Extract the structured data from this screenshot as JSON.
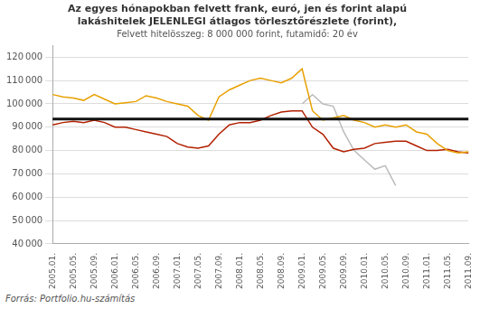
{
  "chart_data": {
    "type": "line",
    "title": [
      "Az egyes hónapokban felvett frank, euró, jen és forint alapú",
      "lakáshitelek JELENLEGI átlagos törlesztőrészlete (forint),"
    ],
    "subtitle": "Felvett hitelösszeg: 8 000 000 forint, futamidő: 20 év",
    "source": "Forrás: Portfolio.hu-számítás",
    "categories": [
      "2005.01.",
      null,
      "2005.05.",
      null,
      "2005.09.",
      null,
      "2006.01.",
      null,
      "2006.05.",
      null,
      "2006.09.",
      null,
      "2007.01.",
      null,
      "2007.05.",
      null,
      "2007.09.",
      null,
      "2008.01.",
      null,
      "2008.05.",
      null,
      "2008.09.",
      null,
      "2009.01.",
      null,
      "2009.05.",
      null,
      "2009.09.",
      null,
      "2010.01.",
      null,
      "2010.05.",
      null,
      "2010.09.",
      null,
      "2011.01.",
      null,
      "2011.05.",
      null,
      "2011.09."
    ],
    "series": [
      {
        "color": "#E8A000",
        "values": [
          104000,
          103000,
          102500,
          101500,
          104000,
          102000,
          100000,
          100500,
          101000,
          103500,
          102500,
          101000,
          100000,
          99000,
          95000,
          93000,
          103000,
          106000,
          108000,
          110000,
          111000,
          110000,
          109000,
          111000,
          115000,
          97000,
          93000,
          94000,
          95000,
          93000,
          92000,
          90000,
          91000,
          90000,
          91000,
          88000,
          87000,
          83000,
          80000,
          79000,
          79500
        ]
      },
      {
        "color": "#B22000",
        "values": [
          91000,
          92000,
          92500,
          92000,
          93000,
          92000,
          90000,
          90000,
          89000,
          88000,
          87000,
          86000,
          83000,
          81500,
          81000,
          82000,
          87000,
          91000,
          92000,
          92000,
          93000,
          95000,
          96500,
          97000,
          97000,
          90000,
          87000,
          81000,
          79500,
          80500,
          81000,
          83000,
          83500,
          84000,
          84000,
          82000,
          80000,
          80000,
          80500,
          79500,
          79000
        ]
      },
      {
        "color": "#BBBBBB",
        "values": [
          null,
          null,
          null,
          null,
          null,
          null,
          null,
          null,
          null,
          null,
          null,
          null,
          null,
          null,
          null,
          null,
          null,
          null,
          null,
          null,
          null,
          null,
          null,
          null,
          100000,
          104000,
          100000,
          99000,
          88000,
          80000,
          76000,
          72000,
          73500,
          65000,
          null,
          null,
          null,
          null,
          null,
          null,
          null
        ]
      }
    ],
    "reference_lines": [
      {
        "y": 93500,
        "color": "#111111"
      }
    ],
    "ylim": [
      40000,
      125000
    ],
    "yticks": [
      {
        "value": 40000,
        "label": "40 000"
      },
      {
        "value": 50000,
        "label": "50 000"
      },
      {
        "value": 60000,
        "label": "60 000"
      },
      {
        "value": 70000,
        "label": "70 000"
      },
      {
        "value": 80000,
        "label": "80 000"
      },
      {
        "value": 90000,
        "label": "90 000"
      },
      {
        "value": 100000,
        "label": "100 000"
      },
      {
        "value": 110000,
        "label": "110 000"
      },
      {
        "value": 120000,
        "label": "120 000"
      }
    ],
    "grid": "y",
    "legend": false
  }
}
